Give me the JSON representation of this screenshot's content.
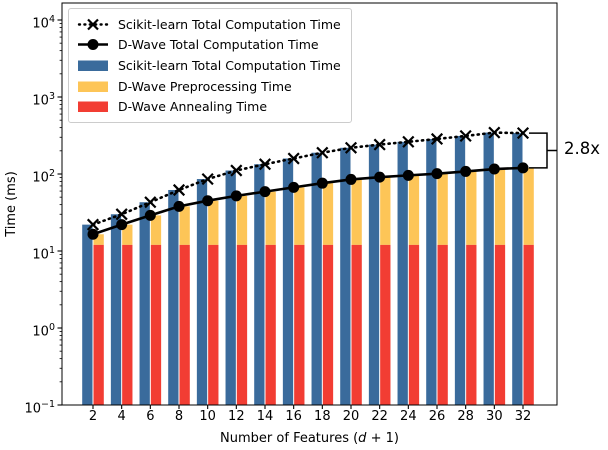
{
  "figure": {
    "ylabel": "Time (ms)",
    "xlabel_prefix": "Number of Features (",
    "xlabel_var": "d",
    "xlabel_suffix": " + 1)",
    "annotation": "2.8x"
  },
  "colors": {
    "scikit_bar": "#3A6B9C",
    "preprocessing_bar": "#FDC557",
    "annealing_bar": "#F23D33",
    "line": "#000000",
    "legend_border": "#cccccc"
  },
  "legend": {
    "entries": [
      {
        "label": "Scikit-learn Total Computation Time",
        "swatch": "line-dotted-x"
      },
      {
        "label": "D-Wave Total Computation Time",
        "swatch": "line-solid-circle"
      },
      {
        "label": "Scikit-learn Total Computation Time",
        "swatch": "bar",
        "color": "#3A6B9C"
      },
      {
        "label": "D-Wave Preprocessing Time",
        "swatch": "bar",
        "color": "#FDC557"
      },
      {
        "label": "D-Wave Annealing Time",
        "swatch": "bar",
        "color": "#F23D33"
      }
    ]
  },
  "chart_data": {
    "type": "bar",
    "title": "",
    "xlabel": "Number of Features (d + 1)",
    "ylabel": "Time (ms)",
    "y_scale": "log",
    "ylim": [
      0.1,
      16000
    ],
    "y_tick_exponents": [
      4,
      3,
      2,
      1,
      0,
      -1
    ],
    "grid": false,
    "legend_position": "upper left",
    "categories": [
      2,
      4,
      6,
      8,
      10,
      12,
      14,
      16,
      18,
      20,
      22,
      24,
      26,
      28,
      30,
      32
    ],
    "series": [
      {
        "name": "Scikit-learn Total Computation Time",
        "type": "line",
        "style": "dotted",
        "marker": "x",
        "color": "#000000",
        "values": [
          22,
          30,
          43,
          62,
          86,
          111,
          134,
          159,
          189,
          219,
          241,
          262,
          285,
          312,
          345,
          340
        ]
      },
      {
        "name": "D-Wave Total Computation Time",
        "type": "line",
        "style": "solid",
        "marker": "circle",
        "color": "#000000",
        "values": [
          16.5,
          22,
          29,
          38,
          45,
          52,
          59,
          67,
          76,
          85,
          91,
          96,
          101,
          108,
          116,
          120
        ]
      },
      {
        "name": "Scikit-learn Total Computation Time",
        "type": "bar",
        "color": "#3A6B9C",
        "values": [
          22,
          30,
          43,
          62,
          86,
          111,
          134,
          159,
          189,
          219,
          241,
          262,
          285,
          312,
          345,
          340
        ]
      },
      {
        "name": "D-Wave Preprocessing Time",
        "type": "bar",
        "color": "#FDC557",
        "stacked_on": "D-Wave Annealing Time",
        "values": [
          4.5,
          10,
          17,
          26,
          33,
          40,
          47,
          55,
          64,
          73,
          79,
          84,
          89,
          96,
          104,
          108
        ]
      },
      {
        "name": "D-Wave Annealing Time",
        "type": "bar",
        "color": "#F23D33",
        "values": [
          12,
          12,
          12,
          12,
          12,
          12,
          12,
          12,
          12,
          12,
          12,
          12,
          12,
          12,
          12,
          12
        ]
      }
    ],
    "annotation": {
      "text": "2.8x",
      "meaning": "ratio of last Scikit-learn total to last D-Wave total"
    }
  }
}
